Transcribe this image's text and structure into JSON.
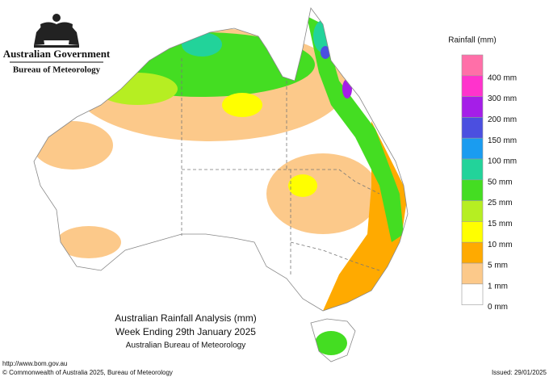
{
  "header": {
    "government": "Australian Government",
    "agency": "Bureau of Meteorology"
  },
  "legend": {
    "title": "Rainfall (mm)",
    "items": [
      {
        "label": "400 mm",
        "color": "#ff6fa8"
      },
      {
        "label": "300 mm",
        "color": "#ff33cc"
      },
      {
        "label": "200 mm",
        "color": "#a51ee8"
      },
      {
        "label": "150 mm",
        "color": "#4b4fe0"
      },
      {
        "label": "100 mm",
        "color": "#1a9cf0"
      },
      {
        "label": "50 mm",
        "color": "#22d39a"
      },
      {
        "label": "25 mm",
        "color": "#44dd22"
      },
      {
        "label": "15 mm",
        "color": "#b6ee22"
      },
      {
        "label": "10 mm",
        "color": "#ffff00"
      },
      {
        "label": "5 mm",
        "color": "#ffaa00"
      },
      {
        "label": "1 mm",
        "color": "#fcc98a"
      },
      {
        "label": "0 mm",
        "color": "#ffffff"
      }
    ]
  },
  "caption": {
    "lines": [
      "Australian Rainfall Analysis (mm)",
      "Week Ending 29th January 2025",
      "Australian Bureau of Meteorology"
    ]
  },
  "footer": {
    "url": "http://www.bom.gov.au",
    "copyright": "© Commonwealth of Australia 2025, Bureau of Meteorology",
    "issued": "Issued: 29/01/2025"
  }
}
